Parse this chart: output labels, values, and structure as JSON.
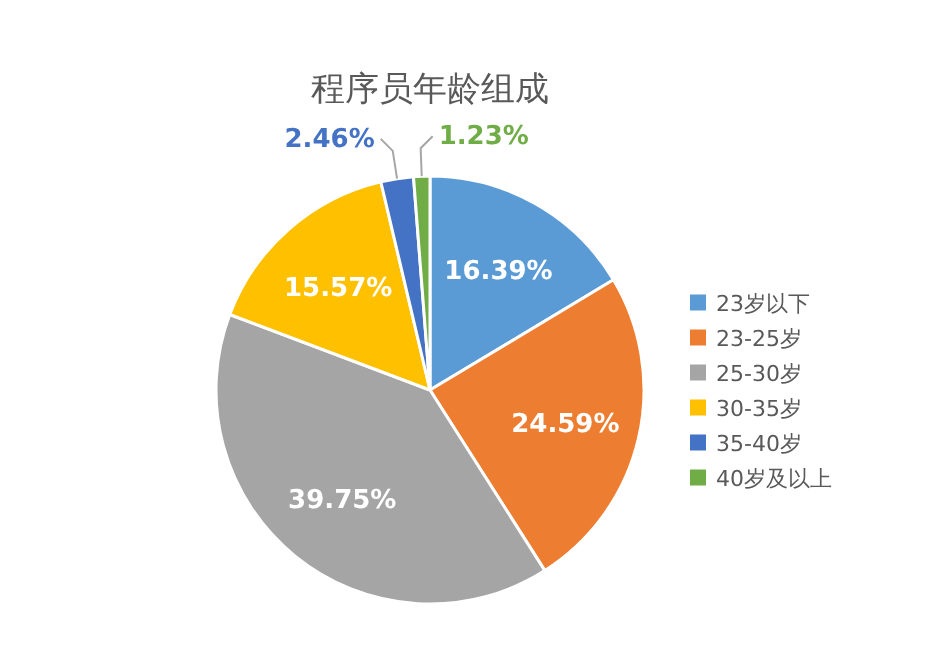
{
  "chart_data": {
    "type": "pie",
    "title": "程序员年龄组成",
    "categories": [
      "23岁以下",
      "23-25岁",
      "25-30岁",
      "30-35岁",
      "35-40岁",
      "40岁及以上"
    ],
    "values": [
      16.39,
      24.59,
      39.75,
      15.57,
      2.46,
      1.23
    ],
    "colors": [
      "#5b9bd5",
      "#ed7d31",
      "#a5a5a5",
      "#ffc000",
      "#4472c4",
      "#70ad47"
    ],
    "value_labels": [
      "16.39%",
      "24.59%",
      "39.75%",
      "15.57%",
      "2.46%",
      "1.23%"
    ],
    "legend": "right"
  }
}
